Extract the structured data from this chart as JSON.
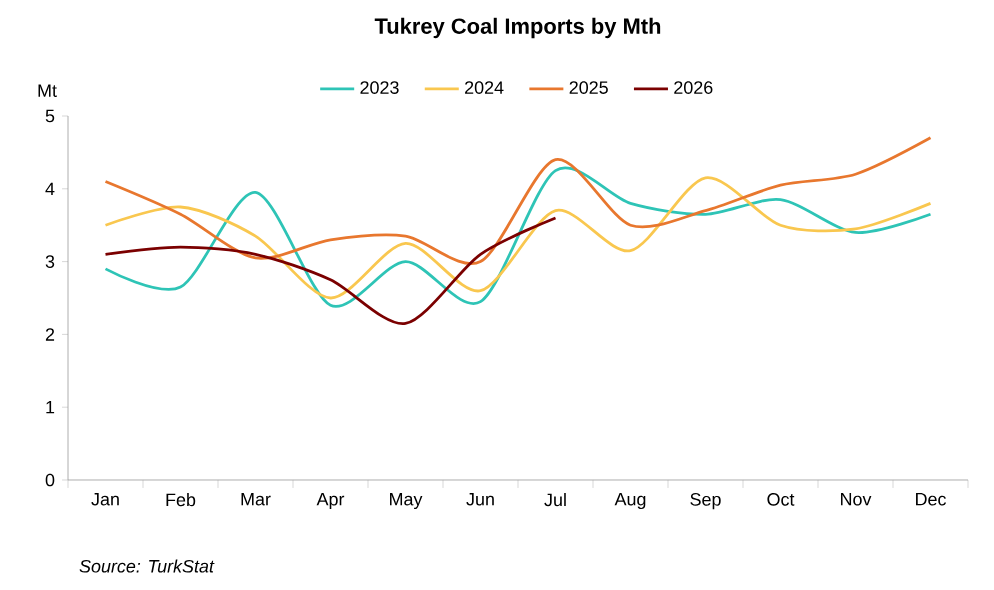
{
  "chart_data": {
    "type": "line",
    "title": "Tukrey Coal Imports by Mth",
    "ylabel": "Mt",
    "categories": [
      "Jan",
      "Feb",
      "Mar",
      "Apr",
      "May",
      "Jun",
      "Jul",
      "Aug",
      "Sep",
      "Oct",
      "Nov",
      "Dec"
    ],
    "series": [
      {
        "name": "2023",
        "color": "#2ec4b6",
        "values": [
          2.9,
          2.65,
          3.95,
          2.4,
          3.0,
          2.45,
          4.25,
          3.8,
          3.65,
          3.85,
          3.4,
          3.65
        ]
      },
      {
        "name": "2024",
        "color": "#f9c74f",
        "values": [
          3.5,
          3.75,
          3.35,
          2.5,
          3.25,
          2.6,
          3.7,
          3.15,
          4.15,
          3.5,
          3.45,
          3.8
        ]
      },
      {
        "name": "2025",
        "color": "#e8772e",
        "values": [
          4.1,
          3.65,
          3.05,
          3.3,
          3.35,
          3.0,
          4.4,
          3.5,
          3.7,
          4.05,
          4.2,
          4.7
        ]
      },
      {
        "name": "2026",
        "color": "#7b0000",
        "values": [
          3.1,
          3.2,
          3.1,
          2.75,
          2.15,
          3.1,
          3.6,
          null,
          null,
          null,
          null,
          null
        ]
      }
    ],
    "ylim": [
      0,
      5
    ],
    "yticks": [
      0,
      1,
      2,
      3,
      4,
      5
    ],
    "grid": false,
    "legend": "top",
    "marker": "none",
    "line_style": "solid",
    "annotations": [
      "Source: TurkStat"
    ]
  }
}
